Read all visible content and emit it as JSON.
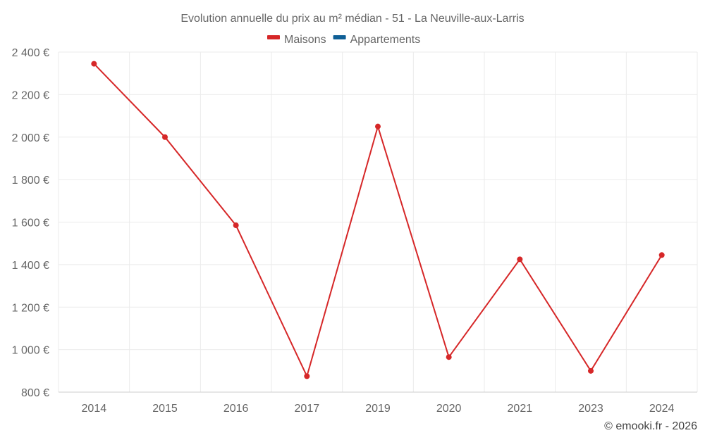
{
  "chart_data": {
    "type": "line",
    "title": "Evolution annuelle du prix au m² médian - 51 - La Neuville-aux-Larris",
    "categories": [
      "2014",
      "2015",
      "2016",
      "2017",
      "2019",
      "2020",
      "2021",
      "2023",
      "2024"
    ],
    "series": [
      {
        "name": "Maisons",
        "color": "#d62728",
        "values": [
          2345,
          2000,
          1585,
          875,
          2050,
          965,
          1425,
          900,
          1445
        ]
      },
      {
        "name": "Appartements",
        "color": "#0f5f96",
        "values": [
          null,
          null,
          null,
          null,
          null,
          null,
          null,
          null,
          null
        ]
      }
    ],
    "ylim": [
      800,
      2400
    ],
    "yticks": [
      800,
      1000,
      1200,
      1400,
      1600,
      1800,
      2000,
      2200,
      2400
    ],
    "ytick_labels": [
      "800 €",
      "1 000 €",
      "1 200 €",
      "1 400 €",
      "1 600 €",
      "1 800 €",
      "2 000 €",
      "2 200 €",
      "2 400 €"
    ],
    "grid": true,
    "legend_position": "top-center",
    "credit": "© emooki.fr - 2026"
  }
}
